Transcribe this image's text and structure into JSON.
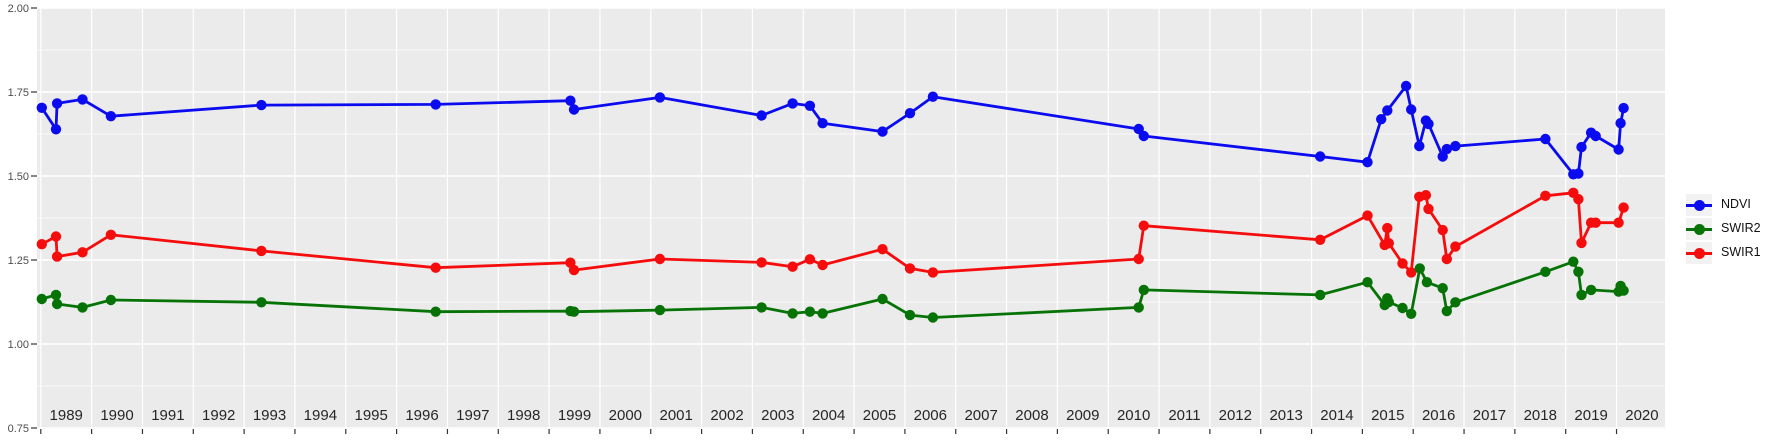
{
  "chart_data": {
    "type": "line",
    "title": "",
    "xlabel": "",
    "ylabel": "",
    "grid": true,
    "legend_position": "right",
    "x_range": [
      1988.93,
      2020.95
    ],
    "y_range": [
      0.75,
      2.0
    ],
    "x_ticks": [
      1989,
      1990,
      1991,
      1992,
      1993,
      1994,
      1995,
      1996,
      1997,
      1998,
      1999,
      2000,
      2001,
      2002,
      2003,
      2004,
      2005,
      2006,
      2007,
      2008,
      2009,
      2010,
      2011,
      2012,
      2013,
      2014,
      2015,
      2016,
      2017,
      2018,
      2019,
      2020
    ],
    "y_ticks": [
      {
        "value": 2.0,
        "label": "2.00"
      },
      {
        "value": 1.75,
        "label": "1.75"
      },
      {
        "value": 1.5,
        "label": "1.50"
      },
      {
        "value": 1.25,
        "label": "1.25"
      },
      {
        "value": 1.0,
        "label": "1.00"
      },
      {
        "value": 0.75,
        "label": "0.75"
      }
    ],
    "y_minor_ticks": [
      1.875,
      1.625,
      1.375,
      1.125,
      0.875
    ],
    "series": [
      {
        "name": "SWIR1",
        "color": "#f50d0d",
        "points": [
          [
            1989.02,
            1.297
          ],
          [
            1989.3,
            1.32
          ],
          [
            1989.32,
            1.26
          ],
          [
            1989.82,
            1.273
          ],
          [
            1990.38,
            1.325
          ],
          [
            1993.34,
            1.277
          ],
          [
            1996.77,
            1.227
          ],
          [
            1999.42,
            1.242
          ],
          [
            1999.49,
            1.22
          ],
          [
            2001.18,
            1.253
          ],
          [
            2003.18,
            1.243
          ],
          [
            2003.79,
            1.23
          ],
          [
            2004.13,
            1.252
          ],
          [
            2004.38,
            1.235
          ],
          [
            2005.56,
            1.282
          ],
          [
            2006.1,
            1.225
          ],
          [
            2006.55,
            1.213
          ],
          [
            2010.6,
            1.253
          ],
          [
            2010.7,
            1.352
          ],
          [
            2014.17,
            1.31
          ],
          [
            2015.1,
            1.382
          ],
          [
            2015.44,
            1.295
          ],
          [
            2015.49,
            1.345
          ],
          [
            2015.52,
            1.3
          ],
          [
            2015.79,
            1.24
          ],
          [
            2015.96,
            1.213
          ],
          [
            2016.12,
            1.438
          ],
          [
            2016.25,
            1.443
          ],
          [
            2016.3,
            1.402
          ],
          [
            2016.58,
            1.339
          ],
          [
            2016.66,
            1.253
          ],
          [
            2016.83,
            1.29
          ],
          [
            2018.6,
            1.441
          ],
          [
            2019.15,
            1.45
          ],
          [
            2019.25,
            1.431
          ],
          [
            2019.31,
            1.301
          ],
          [
            2019.5,
            1.361
          ],
          [
            2019.59,
            1.361
          ],
          [
            2020.04,
            1.361
          ],
          [
            2020.14,
            1.406
          ]
        ]
      },
      {
        "name": "SWIR2",
        "color": "#077307",
        "points": [
          [
            1989.02,
            1.134
          ],
          [
            1989.3,
            1.146
          ],
          [
            1989.32,
            1.119
          ],
          [
            1989.82,
            1.109
          ],
          [
            1990.38,
            1.131
          ],
          [
            1993.34,
            1.124
          ],
          [
            1996.77,
            1.096
          ],
          [
            1999.42,
            1.098
          ],
          [
            1999.49,
            1.096
          ],
          [
            2001.18,
            1.101
          ],
          [
            2003.18,
            1.109
          ],
          [
            2003.79,
            1.091
          ],
          [
            2004.13,
            1.096
          ],
          [
            2004.38,
            1.091
          ],
          [
            2005.56,
            1.134
          ],
          [
            2006.1,
            1.086
          ],
          [
            2006.55,
            1.079
          ],
          [
            2010.6,
            1.109
          ],
          [
            2010.7,
            1.161
          ],
          [
            2014.17,
            1.146
          ],
          [
            2015.1,
            1.184
          ],
          [
            2015.44,
            1.116
          ],
          [
            2015.49,
            1.136
          ],
          [
            2015.52,
            1.125
          ],
          [
            2015.79,
            1.107
          ],
          [
            2015.96,
            1.09
          ],
          [
            2016.13,
            1.225
          ],
          [
            2016.27,
            1.184
          ],
          [
            2016.58,
            1.166
          ],
          [
            2016.66,
            1.098
          ],
          [
            2016.83,
            1.124
          ],
          [
            2018.6,
            1.215
          ],
          [
            2019.15,
            1.245
          ],
          [
            2019.25,
            1.215
          ],
          [
            2019.31,
            1.146
          ],
          [
            2019.5,
            1.161
          ],
          [
            2020.04,
            1.156
          ],
          [
            2020.08,
            1.173
          ],
          [
            2020.14,
            1.159
          ]
        ]
      },
      {
        "name": "NDVI",
        "color": "#0b0bf0",
        "points": [
          [
            1989.02,
            1.703
          ],
          [
            1989.3,
            1.639
          ],
          [
            1989.32,
            1.716
          ],
          [
            1989.82,
            1.728
          ],
          [
            1990.38,
            1.678
          ],
          [
            1993.34,
            1.711
          ],
          [
            1996.77,
            1.713
          ],
          [
            1999.42,
            1.724
          ],
          [
            1999.49,
            1.698
          ],
          [
            2001.18,
            1.734
          ],
          [
            2003.18,
            1.68
          ],
          [
            2003.79,
            1.716
          ],
          [
            2004.13,
            1.709
          ],
          [
            2004.38,
            1.657
          ],
          [
            2005.56,
            1.632
          ],
          [
            2006.1,
            1.687
          ],
          [
            2006.55,
            1.736
          ],
          [
            2010.6,
            1.64
          ],
          [
            2010.7,
            1.619
          ],
          [
            2014.17,
            1.558
          ],
          [
            2015.1,
            1.541
          ],
          [
            2015.37,
            1.669
          ],
          [
            2015.49,
            1.695
          ],
          [
            2015.86,
            1.768
          ],
          [
            2015.96,
            1.698
          ],
          [
            2016.12,
            1.589
          ],
          [
            2016.25,
            1.665
          ],
          [
            2016.3,
            1.655
          ],
          [
            2016.58,
            1.558
          ],
          [
            2016.66,
            1.58
          ],
          [
            2016.83,
            1.589
          ],
          [
            2018.6,
            1.61
          ],
          [
            2019.15,
            1.505
          ],
          [
            2019.25,
            1.507
          ],
          [
            2019.31,
            1.586
          ],
          [
            2019.5,
            1.629
          ],
          [
            2019.59,
            1.619
          ],
          [
            2020.04,
            1.579
          ],
          [
            2020.08,
            1.657
          ],
          [
            2020.14,
            1.702
          ]
        ]
      }
    ]
  },
  "legend": {
    "items": [
      {
        "label": "NDVI",
        "color": "#0b0bf0"
      },
      {
        "label": "SWIR2",
        "color": "#077307"
      },
      {
        "label": "SWIR1",
        "color": "#f50d0d"
      }
    ]
  },
  "colors": {
    "page_bg": "#ffffff",
    "panel_bg": "#ebebeb",
    "gridline": "#ffffff",
    "y_axis_text": "#4d4d4d",
    "x_axis_text": "#262626",
    "tick_mark": "#333333",
    "legend_key_bg": "#f2f2f2",
    "legend_text": "#111111"
  }
}
